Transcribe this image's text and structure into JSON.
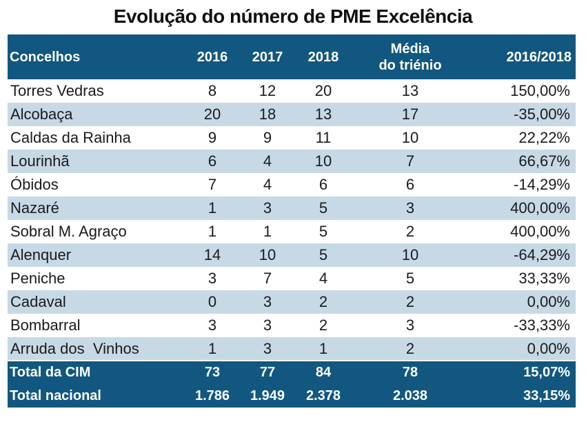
{
  "title": "Evolução do número de PME Excelência",
  "headers": {
    "concelhos": "Concelhos",
    "y2016": "2016",
    "y2017": "2017",
    "y2018": "2018",
    "media_line1": "Média",
    "media_line2": "do triénio",
    "change": "2016/2018"
  },
  "rows": [
    {
      "name": "Torres Vedras",
      "y2016": "8",
      "y2017": "12",
      "y2018": "20",
      "media": "13",
      "change": "150,00%"
    },
    {
      "name": "Alcobaça",
      "y2016": "20",
      "y2017": "18",
      "y2018": "13",
      "media": "17",
      "change": "-35,00%"
    },
    {
      "name": "Caldas da Rainha",
      "y2016": "9",
      "y2017": "9",
      "y2018": "11",
      "media": "10",
      "change": "22,22%"
    },
    {
      "name": "Lourinhã",
      "y2016": "6",
      "y2017": "4",
      "y2018": "10",
      "media": "7",
      "change": "66,67%"
    },
    {
      "name": "Óbidos",
      "y2016": "7",
      "y2017": "4",
      "y2018": "6",
      "media": "6",
      "change": "-14,29%"
    },
    {
      "name": "Nazaré",
      "y2016": "1",
      "y2017": "3",
      "y2018": "5",
      "media": "3",
      "change": "400,00%"
    },
    {
      "name": "Sobral M. Agraço",
      "y2016": "1",
      "y2017": "1",
      "y2018": "5",
      "media": "2",
      "change": "400,00%"
    },
    {
      "name": "Alenquer",
      "y2016": "14",
      "y2017": "10",
      "y2018": "5",
      "media": "10",
      "change": "-64,29%"
    },
    {
      "name": "Peniche",
      "y2016": "3",
      "y2017": "7",
      "y2018": "4",
      "media": "5",
      "change": "33,33%"
    },
    {
      "name": "Cadaval",
      "y2016": "0",
      "y2017": "3",
      "y2018": "2",
      "media": "2",
      "change": "0,00%"
    },
    {
      "name": "Bombarral",
      "y2016": "3",
      "y2017": "3",
      "y2018": "2",
      "media": "3",
      "change": "-33,33%"
    },
    {
      "name": "Arruda dos  Vinhos",
      "y2016": "1",
      "y2017": "3",
      "y2018": "1",
      "media": "2",
      "change": "0,00%"
    }
  ],
  "totals": [
    {
      "name": "Total da CIM",
      "y2016": "73",
      "y2017": "77",
      "y2018": "84",
      "media": "78",
      "change": "15,07%"
    },
    {
      "name": "Total nacional",
      "y2016": "1.786",
      "y2017": "1.949",
      "y2018": "2.378",
      "media": "2.038",
      "change": "33,15%"
    }
  ]
}
